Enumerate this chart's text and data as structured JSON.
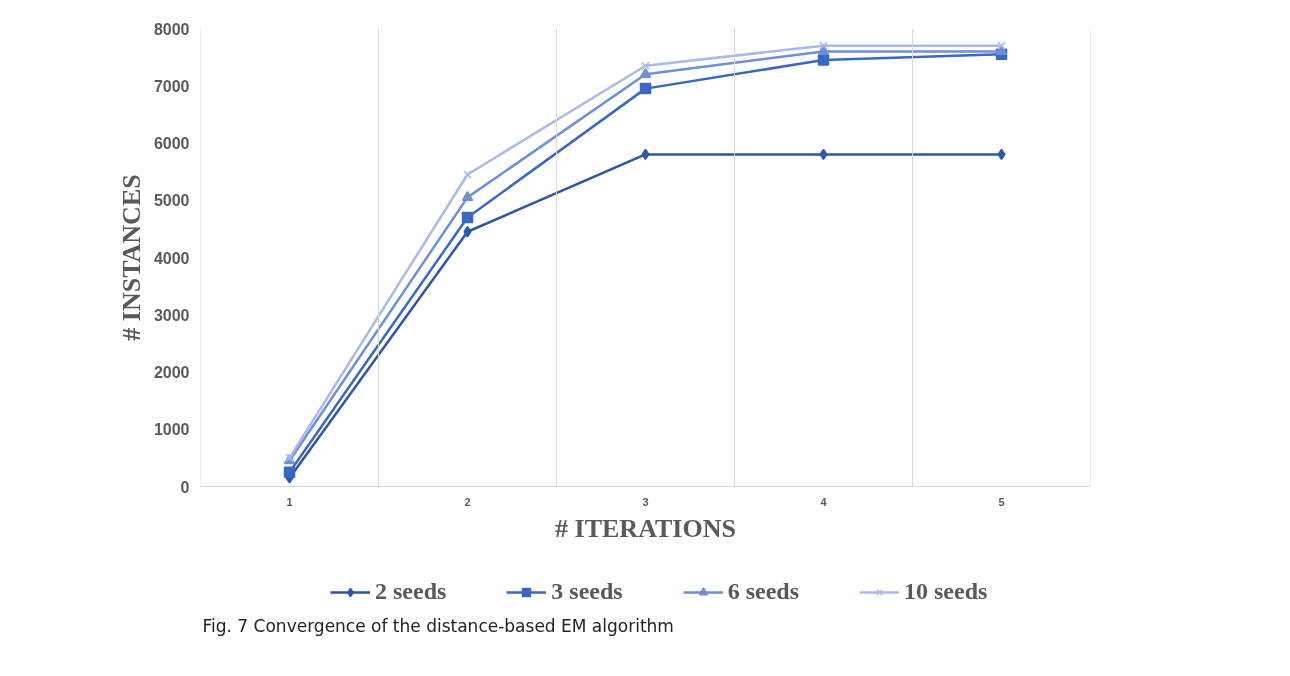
{
  "chart_data": {
    "type": "line",
    "xlabel": "# ITERATIONS",
    "ylabel": "# INSTANCES",
    "categories": [
      "1",
      "2",
      "3",
      "4",
      "5"
    ],
    "ylim": [
      0,
      8000
    ],
    "yticks": [
      0,
      1000,
      2000,
      3000,
      4000,
      5000,
      6000,
      7000,
      8000
    ],
    "grid": "x",
    "legend": "bottom",
    "annotations": [
      "Fig. 7 Convergence of the distance-based EM algorithm"
    ],
    "series": [
      {
        "name": "2 seeds",
        "color": "#2f55a4",
        "marker": "diamond",
        "values": [
          150,
          4450,
          5800,
          5800,
          5800
        ]
      },
      {
        "name": "3 seeds",
        "color": "#3a67c0",
        "marker": "square",
        "values": [
          250,
          4700,
          6950,
          7450,
          7550
        ]
      },
      {
        "name": "6 seeds",
        "color": "#6f8fd6",
        "marker": "triangle",
        "values": [
          450,
          5050,
          7200,
          7600,
          7600
        ]
      },
      {
        "name": "10 seeds",
        "color": "#aab9e6",
        "marker": "cross",
        "values": [
          500,
          5450,
          7350,
          7700,
          7700
        ]
      }
    ]
  }
}
